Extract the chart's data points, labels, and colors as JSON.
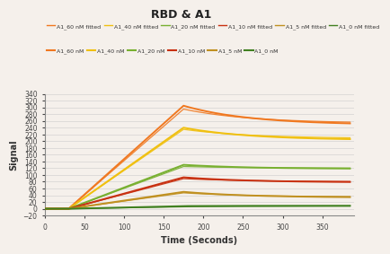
{
  "title": "RBD & A1",
  "xlabel": "Time (Seconds)",
  "ylabel": "Signal",
  "ylim": [
    -20,
    340
  ],
  "xlim": [
    0,
    390
  ],
  "xticks": [
    0,
    50,
    100,
    150,
    200,
    250,
    300,
    350
  ],
  "yticks": [
    -20,
    0,
    20,
    40,
    60,
    80,
    100,
    120,
    140,
    160,
    180,
    200,
    220,
    240,
    260,
    280,
    300,
    320,
    340
  ],
  "background": "#f5f0eb",
  "series": [
    {
      "label": "A1_60 nM",
      "color": "#f07820",
      "assoc_peak": 305,
      "dissoc_val": 248,
      "fitted": false,
      "lw": 1.4
    },
    {
      "label": "A1_40 nM",
      "color": "#f0c010",
      "assoc_peak": 240,
      "dissoc_val": 203,
      "fitted": false,
      "lw": 1.4
    },
    {
      "label": "A1_20 nM",
      "color": "#78b030",
      "assoc_peak": 130,
      "dissoc_val": 118,
      "fitted": false,
      "lw": 1.4
    },
    {
      "label": "A1_10 nM",
      "color": "#c83010",
      "assoc_peak": 93,
      "dissoc_val": 78,
      "fitted": false,
      "lw": 1.4
    },
    {
      "label": "A1_5 nM",
      "color": "#c09020",
      "assoc_peak": 50,
      "dissoc_val": 33,
      "fitted": false,
      "lw": 1.4
    },
    {
      "label": "A1_0 nM",
      "color": "#408020",
      "assoc_peak": 8,
      "dissoc_val": 9,
      "fitted": false,
      "lw": 1.4
    },
    {
      "label": "A1_60 nM fitted",
      "color": "#f07820",
      "assoc_peak": 295,
      "dissoc_val": 253,
      "fitted": true,
      "lw": 0.9
    },
    {
      "label": "A1_40 nM fitted",
      "color": "#f0c010",
      "assoc_peak": 235,
      "dissoc_val": 208,
      "fitted": true,
      "lw": 0.9
    },
    {
      "label": "A1_20 nM fitted",
      "color": "#78b030",
      "assoc_peak": 125,
      "dissoc_val": 120,
      "fitted": true,
      "lw": 0.9
    },
    {
      "label": "A1_10 nM fitted",
      "color": "#c83010",
      "assoc_peak": 89,
      "dissoc_val": 80,
      "fitted": true,
      "lw": 0.9
    },
    {
      "label": "A1_5 nM fitted",
      "color": "#c09020",
      "assoc_peak": 47,
      "dissoc_val": 35,
      "fitted": true,
      "lw": 0.9
    },
    {
      "label": "A1_0 nM fitted",
      "color": "#408020",
      "assoc_peak": 6,
      "dissoc_val": 8,
      "fitted": true,
      "lw": 0.9
    }
  ],
  "t_baseline_start": 0,
  "t_baseline_end": 30,
  "t_assoc_end": 175,
  "t_dissoc_end": 385
}
